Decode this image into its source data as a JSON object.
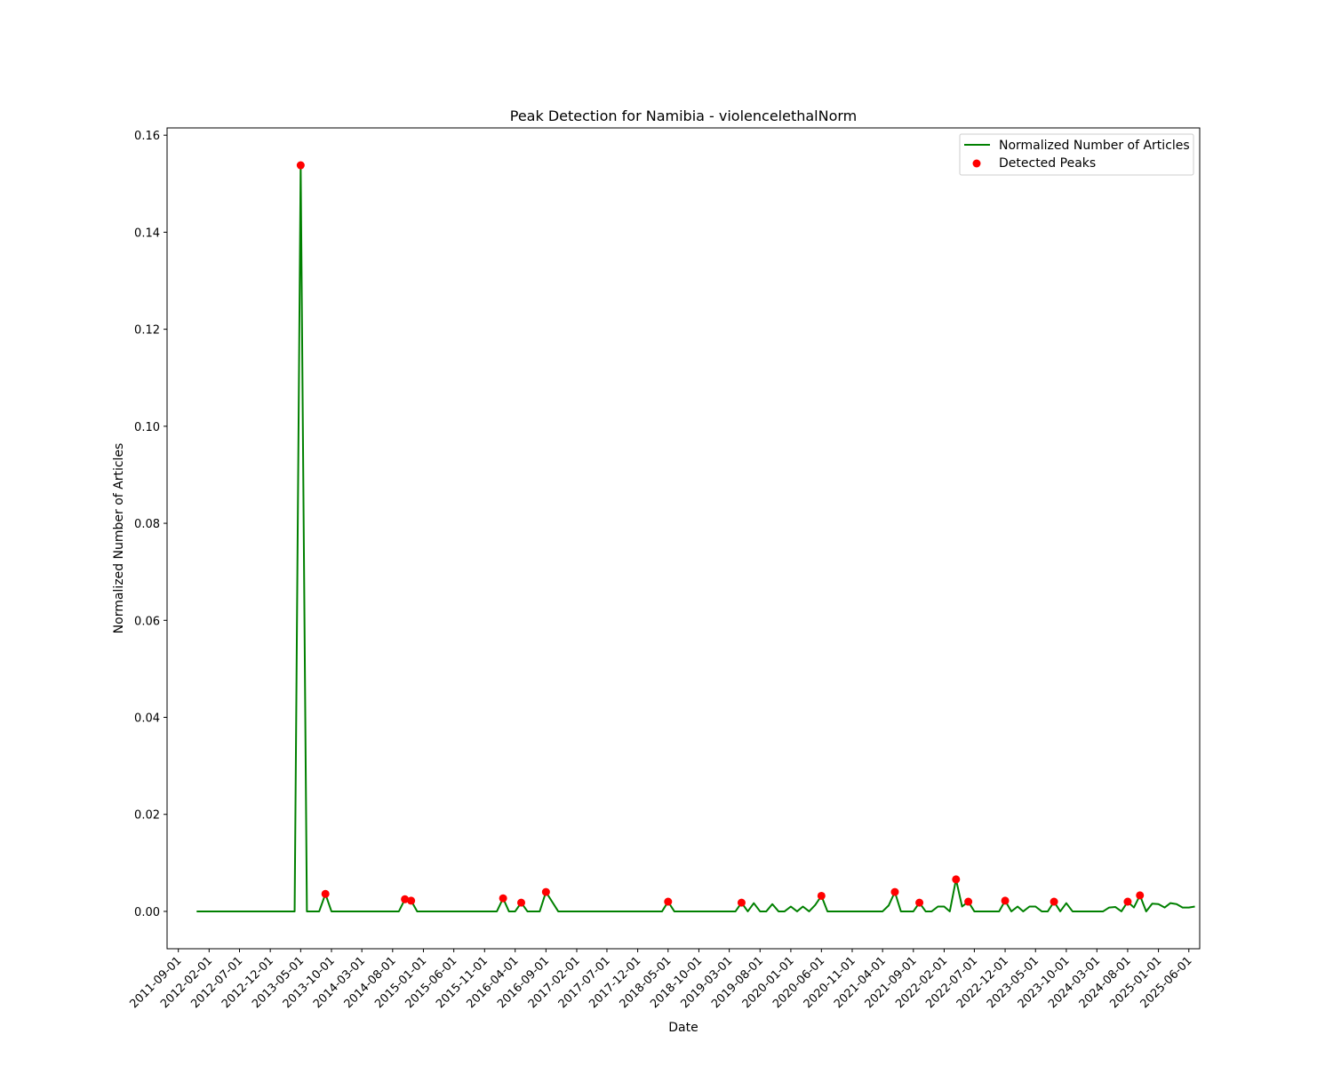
{
  "chart_data": {
    "type": "line",
    "title": "Peak Detection for Namibia - violencelethalNorm",
    "xlabel": "Date",
    "ylabel": "Normalized Number of Articles",
    "xlim": [
      "2011-07-07",
      "2025-07-25"
    ],
    "ylim": [
      -0.0077,
      0.1615
    ],
    "x_ticks": [
      "2011-09-01",
      "2012-02-01",
      "2012-07-01",
      "2012-12-01",
      "2013-05-01",
      "2013-10-01",
      "2014-03-01",
      "2014-08-01",
      "2015-01-01",
      "2015-06-01",
      "2015-11-01",
      "2016-04-01",
      "2016-09-01",
      "2017-02-01",
      "2017-07-01",
      "2017-12-01",
      "2018-05-01",
      "2018-10-01",
      "2019-03-01",
      "2019-08-01",
      "2020-01-01",
      "2020-06-01",
      "2020-11-01",
      "2021-04-01",
      "2021-09-01",
      "2022-02-01",
      "2022-07-01",
      "2022-12-01",
      "2023-05-01",
      "2023-10-01",
      "2024-03-01",
      "2024-08-01",
      "2025-01-01",
      "2025-06-01"
    ],
    "y_ticks": [
      0.0,
      0.02,
      0.04,
      0.06,
      0.08,
      0.1,
      0.12,
      0.14,
      0.16
    ],
    "grid": false,
    "legend_position": "top-right",
    "series": [
      {
        "name": "Normalized Number of Articles",
        "kind": "line",
        "color": "#008000",
        "points": [
          [
            "2011-12-01",
            0
          ],
          [
            "2013-04-01",
            0
          ],
          [
            "2013-05-01",
            0.1538
          ],
          [
            "2013-06-01",
            0
          ],
          [
            "2013-08-01",
            0
          ],
          [
            "2013-09-01",
            0.0036
          ],
          [
            "2013-10-01",
            0
          ],
          [
            "2014-09-01",
            0
          ],
          [
            "2014-10-01",
            0.0025
          ],
          [
            "2014-11-01",
            0.0022
          ],
          [
            "2014-12-01",
            0
          ],
          [
            "2016-01-01",
            0
          ],
          [
            "2016-02-01",
            0.0027
          ],
          [
            "2016-03-01",
            0
          ],
          [
            "2016-04-01",
            0
          ],
          [
            "2016-05-01",
            0.0018
          ],
          [
            "2016-06-01",
            0
          ],
          [
            "2016-08-01",
            0
          ],
          [
            "2016-09-01",
            0.004
          ],
          [
            "2016-11-01",
            0
          ],
          [
            "2018-04-01",
            0
          ],
          [
            "2018-05-01",
            0.002
          ],
          [
            "2018-06-01",
            0
          ],
          [
            "2019-04-01",
            0
          ],
          [
            "2019-05-01",
            0.0018
          ],
          [
            "2019-06-01",
            0
          ],
          [
            "2019-07-01",
            0.0017
          ],
          [
            "2019-08-01",
            0
          ],
          [
            "2019-09-01",
            0
          ],
          [
            "2019-10-01",
            0.0015
          ],
          [
            "2019-11-01",
            0
          ],
          [
            "2019-12-01",
            0
          ],
          [
            "2020-01-01",
            0.001
          ],
          [
            "2020-02-01",
            0
          ],
          [
            "2020-03-01",
            0.001
          ],
          [
            "2020-04-01",
            0
          ],
          [
            "2020-05-01",
            0.0013
          ],
          [
            "2020-06-01",
            0.0032
          ],
          [
            "2020-07-01",
            0
          ],
          [
            "2021-04-01",
            0
          ],
          [
            "2021-05-01",
            0.0012
          ],
          [
            "2021-06-01",
            0.004
          ],
          [
            "2021-07-01",
            0
          ],
          [
            "2021-09-01",
            0
          ],
          [
            "2021-10-01",
            0.0018
          ],
          [
            "2021-11-01",
            0
          ],
          [
            "2021-12-01",
            0
          ],
          [
            "2022-01-01",
            0.001
          ],
          [
            "2022-02-01",
            0.001
          ],
          [
            "2022-03-01",
            0
          ],
          [
            "2022-04-01",
            0.0066
          ],
          [
            "2022-05-01",
            0.001
          ],
          [
            "2022-06-01",
            0.002
          ],
          [
            "2022-07-01",
            0
          ],
          [
            "2022-11-01",
            0
          ],
          [
            "2022-12-01",
            0.0022
          ],
          [
            "2023-01-01",
            0
          ],
          [
            "2023-02-01",
            0.001
          ],
          [
            "2023-03-01",
            0
          ],
          [
            "2023-04-01",
            0.001
          ],
          [
            "2023-05-01",
            0.001
          ],
          [
            "2023-06-01",
            0
          ],
          [
            "2023-07-01",
            0
          ],
          [
            "2023-08-01",
            0.002
          ],
          [
            "2023-09-01",
            0
          ],
          [
            "2023-10-01",
            0.0017
          ],
          [
            "2023-11-01",
            0
          ],
          [
            "2024-04-01",
            0
          ],
          [
            "2024-05-01",
            0.0008
          ],
          [
            "2024-06-01",
            0.0009
          ],
          [
            "2024-07-01",
            0
          ],
          [
            "2024-08-01",
            0.002
          ],
          [
            "2024-09-01",
            0.0008
          ],
          [
            "2024-10-01",
            0.0033
          ],
          [
            "2024-11-01",
            0
          ],
          [
            "2024-12-01",
            0.0016
          ],
          [
            "2025-01-01",
            0.0015
          ],
          [
            "2025-02-01",
            0.0008
          ],
          [
            "2025-03-01",
            0.0017
          ],
          [
            "2025-04-01",
            0.0015
          ],
          [
            "2025-05-01",
            0.0008
          ],
          [
            "2025-06-01",
            0.0008
          ],
          [
            "2025-07-01",
            0.001
          ]
        ]
      },
      {
        "name": "Detected Peaks",
        "kind": "scatter",
        "color": "#ff0000",
        "points": [
          [
            "2013-05-01",
            0.1538
          ],
          [
            "2013-09-01",
            0.0036
          ],
          [
            "2014-10-01",
            0.0025
          ],
          [
            "2014-11-01",
            0.0022
          ],
          [
            "2016-02-01",
            0.0027
          ],
          [
            "2016-05-01",
            0.0018
          ],
          [
            "2016-09-01",
            0.004
          ],
          [
            "2018-05-01",
            0.002
          ],
          [
            "2019-05-01",
            0.0018
          ],
          [
            "2020-06-01",
            0.0032
          ],
          [
            "2021-06-01",
            0.004
          ],
          [
            "2021-10-01",
            0.0018
          ],
          [
            "2022-04-01",
            0.0066
          ],
          [
            "2022-06-01",
            0.002
          ],
          [
            "2022-12-01",
            0.0022
          ],
          [
            "2023-08-01",
            0.002
          ],
          [
            "2024-08-01",
            0.002
          ],
          [
            "2024-10-01",
            0.0033
          ]
        ]
      }
    ]
  }
}
